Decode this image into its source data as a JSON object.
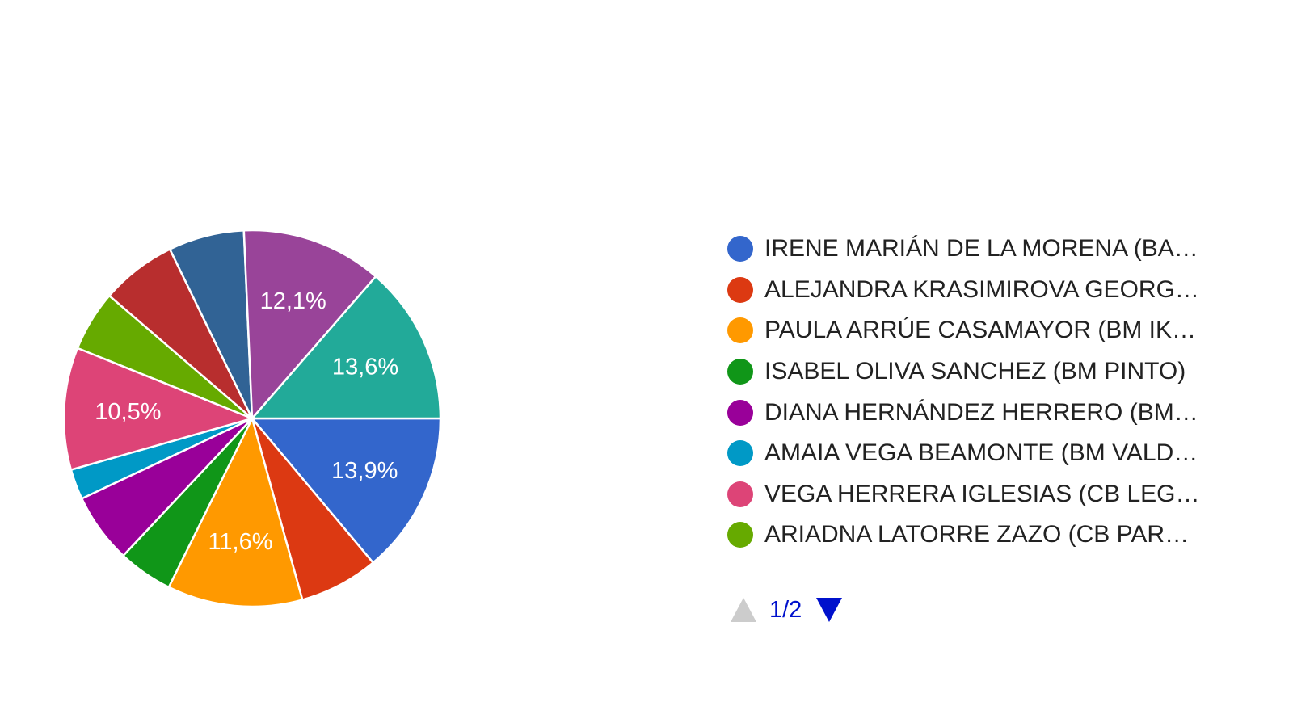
{
  "chart_data": {
    "type": "pie",
    "slices": [
      {
        "value": 13.9,
        "label": "13,9%",
        "color": "#3366cc"
      },
      {
        "value": 6.8,
        "label": "",
        "color": "#dc3912"
      },
      {
        "value": 11.6,
        "label": "11,6%",
        "color": "#ff9900"
      },
      {
        "value": 4.7,
        "label": "",
        "color": "#109618"
      },
      {
        "value": 6.0,
        "label": "",
        "color": "#990099"
      },
      {
        "value": 2.6,
        "label": "",
        "color": "#0099c6"
      },
      {
        "value": 10.5,
        "label": "10,5%",
        "color": "#dd4477"
      },
      {
        "value": 5.2,
        "label": "",
        "color": "#66aa00"
      },
      {
        "value": 6.5,
        "label": "",
        "color": "#b82e2e"
      },
      {
        "value": 6.5,
        "label": "",
        "color": "#316395"
      },
      {
        "value": 12.1,
        "label": "12,1%",
        "color": "#994499"
      },
      {
        "value": 13.6,
        "label": "13,6%",
        "color": "#22aa99"
      }
    ],
    "legend_placement": "right"
  },
  "legend": {
    "items": [
      {
        "label": "IRENE MARIÁN DE LA MORENA (BA…",
        "color": "#3366cc"
      },
      {
        "label": "ALEJANDRA KRASIMIROVA GEORG…",
        "color": "#dc3912"
      },
      {
        "label": "PAULA ARRÚE CASAMAYOR (BM IK…",
        "color": "#ff9900"
      },
      {
        "label": "ISABEL OLIVA SANCHEZ (BM PINTO)",
        "color": "#109618"
      },
      {
        "label": "DIANA HERNÁNDEZ HERRERO (BM…",
        "color": "#990099"
      },
      {
        "label": "AMAIA VEGA BEAMONTE (BM VALD…",
        "color": "#0099c6"
      },
      {
        "label": "VEGA HERRERA IGLESIAS (CB LEG…",
        "color": "#dd4477"
      },
      {
        "label": "ARIADNA LATORRE ZAZO (CB PAR…",
        "color": "#66aa00"
      }
    ],
    "pager": {
      "text": "1/2",
      "prev_icon": "triangle-up-icon",
      "next_icon": "triangle-down-icon"
    }
  }
}
